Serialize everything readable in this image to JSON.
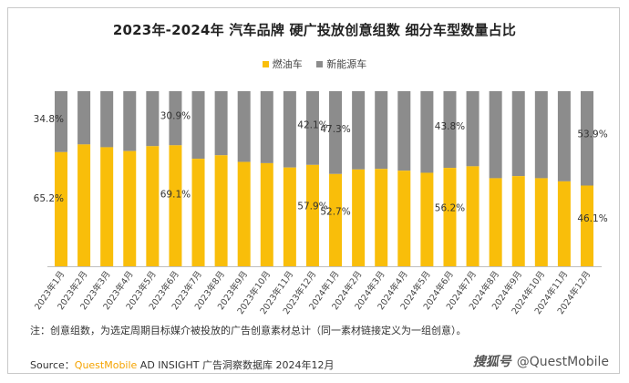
{
  "title": "2023年-2024年 汽车品牌 硬广投放创意组数 细分车型数量占比",
  "legend": [
    {
      "label": "燃油车",
      "color": "#f9be0a"
    },
    {
      "label": "新能源车",
      "color": "#8c8c8c"
    }
  ],
  "chart_data": {
    "type": "bar",
    "stacked": true,
    "percent": true,
    "categories": [
      "2023年1月",
      "2023年2月",
      "2023年3月",
      "2023年4月",
      "2023年5月",
      "2023年6月",
      "2023年7月",
      "2023年8月",
      "2023年9月",
      "2023年10月",
      "2023年11月",
      "2023年12月",
      "2024年1月",
      "2024年2月",
      "2024年3月",
      "2024年4月",
      "2024年5月",
      "2024年6月",
      "2024年7月",
      "2024年8月",
      "2024年9月",
      "2024年10月",
      "2024年11月",
      "2024年12月"
    ],
    "series": [
      {
        "name": "燃油车",
        "color": "#f9be0a",
        "values": [
          65.2,
          69.6,
          68.0,
          65.8,
          68.6,
          69.1,
          61.4,
          63.4,
          59.6,
          58.9,
          56.4,
          57.9,
          52.7,
          55.3,
          55.6,
          54.6,
          53.4,
          56.2,
          57.1,
          50.3,
          51.5,
          50.3,
          48.5,
          46.1
        ]
      },
      {
        "name": "新能源车",
        "color": "#8c8c8c",
        "values": [
          34.8,
          30.4,
          32.0,
          34.2,
          31.4,
          30.9,
          38.6,
          36.6,
          40.4,
          41.1,
          43.6,
          42.1,
          47.3,
          44.7,
          44.4,
          45.4,
          46.6,
          43.8,
          42.9,
          49.7,
          48.5,
          49.7,
          51.5,
          53.9
        ]
      }
    ],
    "labels": [
      {
        "index": 0,
        "series": 0,
        "text": "65.2%"
      },
      {
        "index": 0,
        "series": 1,
        "text": "34.8%"
      },
      {
        "index": 5,
        "series": 0,
        "text": "69.1%"
      },
      {
        "index": 5,
        "series": 1,
        "text": "30.9%"
      },
      {
        "index": 11,
        "series": 0,
        "text": "57.9%"
      },
      {
        "index": 11,
        "series": 1,
        "text": "42.1%"
      },
      {
        "index": 12,
        "series": 0,
        "text": "52.7%"
      },
      {
        "index": 12,
        "series": 1,
        "text": "47.3%"
      },
      {
        "index": 17,
        "series": 0,
        "text": "56.2%"
      },
      {
        "index": 17,
        "series": 1,
        "text": "43.8%"
      },
      {
        "index": 23,
        "series": 0,
        "text": "46.1%"
      },
      {
        "index": 23,
        "series": 1,
        "text": "53.9%"
      }
    ],
    "ylim": [
      0,
      100
    ],
    "grid": false
  },
  "note": "注：创意组数，为选定周期目标媒介被投放的广告创意素材总计（同一素材链接定义为一组创意）。",
  "source": {
    "prefix": "Source：",
    "brand": "QuestMobile",
    "rest": " AD INSIGHT 广告洞察数据库 2024年12月"
  },
  "watermark": {
    "logo": "搜狐号",
    "handle": "@QuestMobile"
  }
}
